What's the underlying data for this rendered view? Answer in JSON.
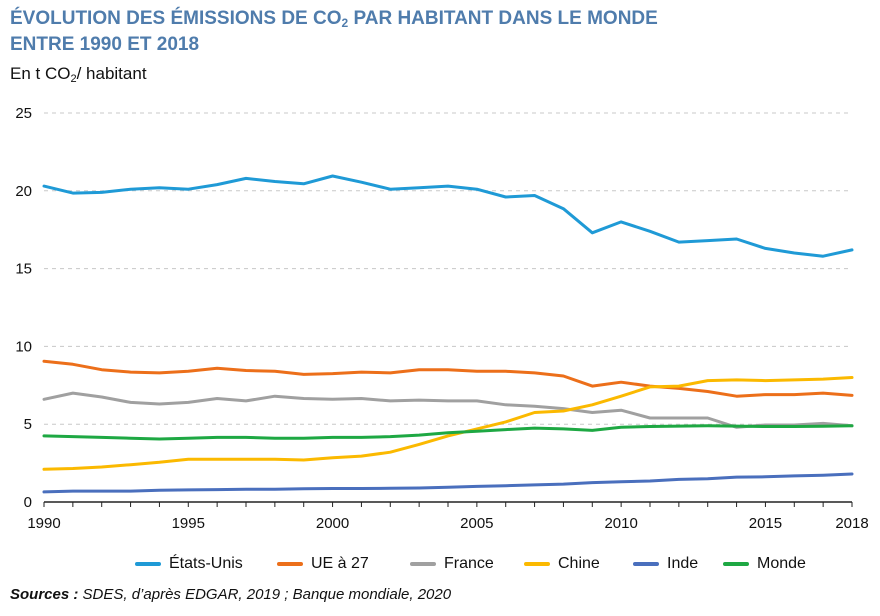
{
  "title_line1_a": "ÉVOLUTION DES ÉMISSIONS DE CO",
  "title_sub": "2",
  "title_line1_b": " PAR HABITANT DANS LE MONDE",
  "title_line2": "ENTRE 1990 ET 2018",
  "unit_a": "En t CO",
  "unit_sub": "2",
  "unit_b": "/ habitant",
  "sources_label": "Sources :",
  "sources_text": " SDES, d’après EDGAR, 2019 ; Banque mondiale, 2020",
  "chart_data": {
    "type": "line",
    "title": "ÉVOLUTION DES ÉMISSIONS DE CO2 PAR HABITANT DANS LE MONDE ENTRE 1990 ET 2018",
    "ylabel": "En t CO2/ habitant",
    "xlabel": "",
    "xlim": [
      1990,
      2018
    ],
    "ylim": [
      0,
      25
    ],
    "x_ticks": [
      1990,
      1995,
      2000,
      2005,
      2010,
      2015,
      2018
    ],
    "y_ticks": [
      0,
      5,
      10,
      15,
      20,
      25
    ],
    "grid": "horizontal dashed",
    "legend_position": "bottom",
    "x": [
      1990,
      1991,
      1992,
      1993,
      1994,
      1995,
      1996,
      1997,
      1998,
      1999,
      2000,
      2001,
      2002,
      2003,
      2004,
      2005,
      2006,
      2007,
      2008,
      2009,
      2010,
      2011,
      2012,
      2013,
      2014,
      2015,
      2016,
      2017,
      2018
    ],
    "series": [
      {
        "name": "États-Unis",
        "color": "#1f9ad6",
        "values": [
          20.3,
          19.85,
          19.9,
          20.1,
          20.2,
          20.1,
          20.4,
          20.8,
          20.6,
          20.45,
          20.95,
          20.55,
          20.1,
          20.2,
          20.3,
          20.1,
          19.6,
          19.7,
          18.85,
          17.3,
          18.0,
          17.4,
          16.7,
          16.8,
          16.9,
          16.3,
          16.0,
          15.8,
          16.2
        ]
      },
      {
        "name": "UE à 27",
        "color": "#ec6f1a",
        "values": [
          9.05,
          8.85,
          8.5,
          8.35,
          8.3,
          8.4,
          8.6,
          8.45,
          8.4,
          8.2,
          8.25,
          8.35,
          8.3,
          8.5,
          8.5,
          8.4,
          8.4,
          8.3,
          8.1,
          7.45,
          7.7,
          7.45,
          7.3,
          7.1,
          6.8,
          6.9,
          6.9,
          7.0,
          6.85
        ]
      },
      {
        "name": "France",
        "color": "#a0a0a0",
        "values": [
          6.6,
          7.0,
          6.75,
          6.4,
          6.3,
          6.4,
          6.65,
          6.5,
          6.8,
          6.65,
          6.6,
          6.65,
          6.5,
          6.55,
          6.5,
          6.5,
          6.25,
          6.15,
          6.0,
          5.75,
          5.9,
          5.4,
          5.4,
          5.4,
          4.8,
          4.95,
          4.95,
          5.05,
          4.9
        ]
      },
      {
        "name": "Chine",
        "color": "#fbb900",
        "values": [
          2.1,
          2.15,
          2.25,
          2.4,
          2.55,
          2.75,
          2.75,
          2.75,
          2.75,
          2.7,
          2.85,
          2.95,
          3.2,
          3.7,
          4.25,
          4.7,
          5.15,
          5.75,
          5.85,
          6.25,
          6.8,
          7.4,
          7.45,
          7.8,
          7.85,
          7.8,
          7.85,
          7.9,
          8.0
        ]
      },
      {
        "name": "Inde",
        "color": "#4a6fbd",
        "values": [
          0.65,
          0.7,
          0.7,
          0.7,
          0.75,
          0.78,
          0.8,
          0.82,
          0.82,
          0.85,
          0.87,
          0.87,
          0.88,
          0.9,
          0.95,
          1.0,
          1.05,
          1.1,
          1.15,
          1.25,
          1.3,
          1.35,
          1.45,
          1.5,
          1.6,
          1.62,
          1.68,
          1.72,
          1.8
        ]
      },
      {
        "name": "Monde",
        "color": "#1ea843",
        "values": [
          4.25,
          4.2,
          4.15,
          4.1,
          4.05,
          4.1,
          4.15,
          4.15,
          4.1,
          4.1,
          4.15,
          4.15,
          4.2,
          4.3,
          4.45,
          4.55,
          4.65,
          4.75,
          4.7,
          4.6,
          4.8,
          4.85,
          4.88,
          4.9,
          4.88,
          4.85,
          4.85,
          4.87,
          4.9
        ]
      }
    ]
  }
}
